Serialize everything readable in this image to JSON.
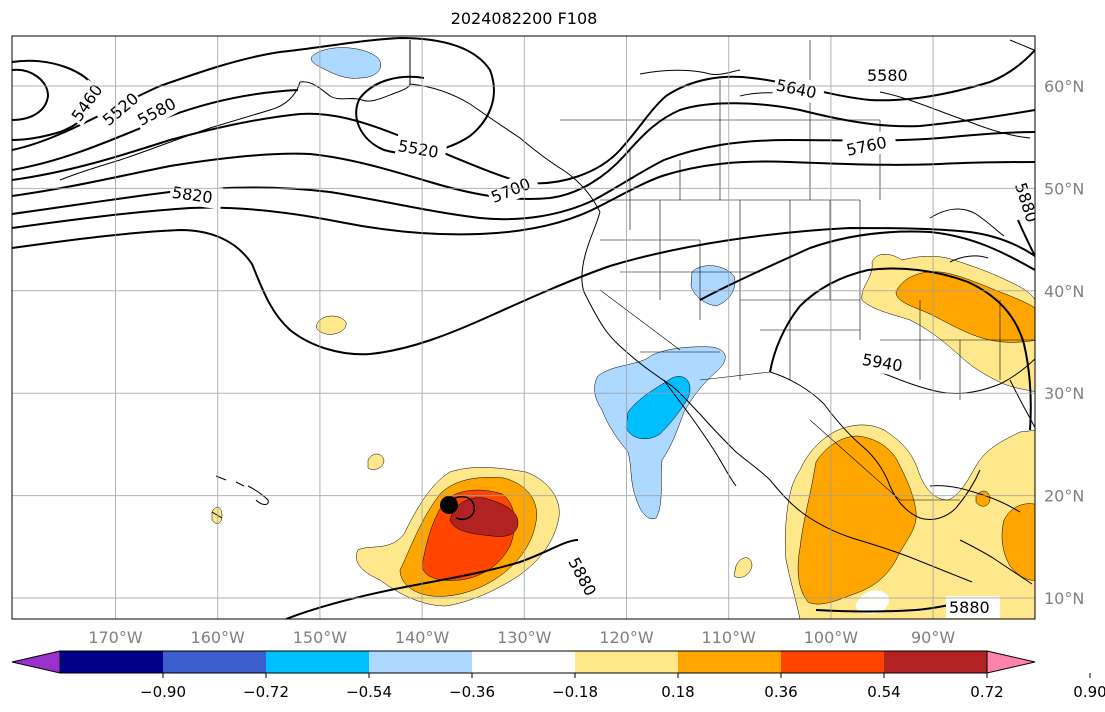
{
  "title": "2024082200 F108",
  "axes": {
    "longitude_ticks": [
      "170°W",
      "160°W",
      "150°W",
      "140°W",
      "130°W",
      "120°W",
      "110°W",
      "100°W",
      "90°W"
    ],
    "latitude_ticks": [
      "10°N",
      "20°N",
      "30°N",
      "40°N",
      "50°N",
      "60°N"
    ],
    "label_color": "#808080",
    "grid": true
  },
  "contour_labels": {
    "c5460": "5460",
    "c5520a": "5520",
    "c5580a": "5580",
    "c5520b": "5520",
    "c5640": "5640",
    "c5580b": "5580",
    "c5700": "5700",
    "c5760": "5760",
    "c5820": "5820",
    "c5880a": "5880",
    "c5940": "5940",
    "c5880b": "5880",
    "c5880c": "5880"
  },
  "colorbar": {
    "ticks": [
      "−0.90",
      "−0.72",
      "−0.54",
      "−0.36",
      "−0.18",
      "0.18",
      "0.36",
      "0.54",
      "0.72",
      "0.90"
    ],
    "colors": [
      "#9932cc",
      "#00008b",
      "#3a5fcd",
      "#00bfff",
      "#add8ff",
      "#ffffff",
      "#ffe88c",
      "#ffa500",
      "#ff4500",
      "#b22222",
      "#ff82ab"
    ]
  },
  "fill_colors": {
    "neg_light": "#add8ff",
    "neg_mid": "#00bfff",
    "pos_light": "#ffe88c",
    "pos_mid": "#ffa500",
    "pos_high": "#ff4500",
    "pos_top": "#b22222"
  }
}
